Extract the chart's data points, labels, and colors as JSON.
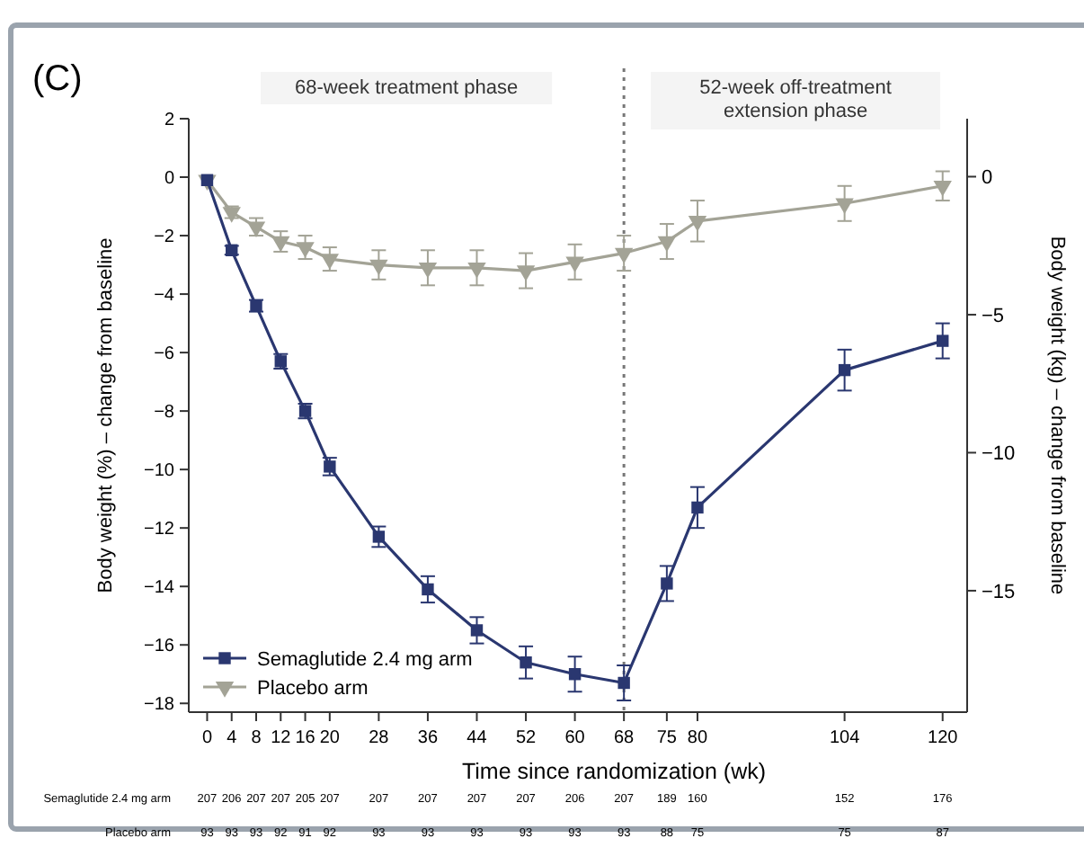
{
  "chart_data": {
    "type": "line",
    "title": "(C)",
    "xlabel": "Time since randomization (wk)",
    "ylabel": "Body weight (%) – change from baseline",
    "y2label": "Body weight (kg) – change from baseline",
    "x": [
      0,
      4,
      8,
      12,
      16,
      20,
      28,
      36,
      44,
      52,
      60,
      68,
      75,
      80,
      104,
      120
    ],
    "xlim": [
      -3,
      124
    ],
    "xticks": [
      0,
      4,
      8,
      12,
      16,
      20,
      28,
      36,
      44,
      52,
      60,
      68,
      75,
      80,
      104,
      120
    ],
    "ylim": [
      -18.3,
      2
    ],
    "yticks": [
      2,
      0,
      -2,
      -4,
      -6,
      -8,
      -10,
      -12,
      -14,
      -16,
      -18
    ],
    "y2lim": [
      -19.4,
      2.1
    ],
    "y2ticks": [
      0,
      -5,
      -10,
      -15
    ],
    "series": [
      {
        "name": "Semaglutide 2.4 mg arm",
        "color": "#2a3770",
        "marker": "square",
        "values": [
          -0.1,
          -2.5,
          -4.4,
          -6.3,
          -8.0,
          -9.9,
          -12.3,
          -14.1,
          -15.5,
          -16.6,
          -17.0,
          -17.3,
          -13.9,
          -11.3,
          -6.6,
          -5.6
        ],
        "errors": [
          null,
          0.15,
          0.2,
          0.25,
          0.25,
          0.3,
          0.35,
          0.45,
          0.45,
          0.55,
          0.6,
          0.6,
          0.6,
          0.7,
          0.7,
          0.6
        ]
      },
      {
        "name": "Placebo arm",
        "color": "#a3a396",
        "marker": "triangle",
        "values": [
          -0.1,
          -1.2,
          -1.7,
          -2.2,
          -2.4,
          -2.8,
          -3.0,
          -3.1,
          -3.1,
          -3.2,
          -2.9,
          -2.6,
          -2.2,
          -1.5,
          -0.9,
          -0.3
        ],
        "errors": [
          null,
          0.2,
          0.3,
          0.35,
          0.4,
          0.4,
          0.5,
          0.6,
          0.6,
          0.6,
          0.6,
          0.6,
          0.6,
          0.7,
          0.6,
          0.5
        ]
      }
    ],
    "ref_lines": [
      {
        "axis": "x",
        "value": 68,
        "line_style": "dotted",
        "color": "#777777"
      }
    ],
    "legend": "bottom left",
    "grid": false,
    "annotations": [
      "68-week treatment phase",
      "52-week off-treatment\nextension phase",
      "Semaglutide 2.4 mg arm",
      "207 206 207 207 205 207 207 207 207 207 206 207 189 160 152 176",
      "Placebo arm",
      "93 93 93 92 91 92 93 93 93 93 93 93 88 75 75 87"
    ]
  }
}
